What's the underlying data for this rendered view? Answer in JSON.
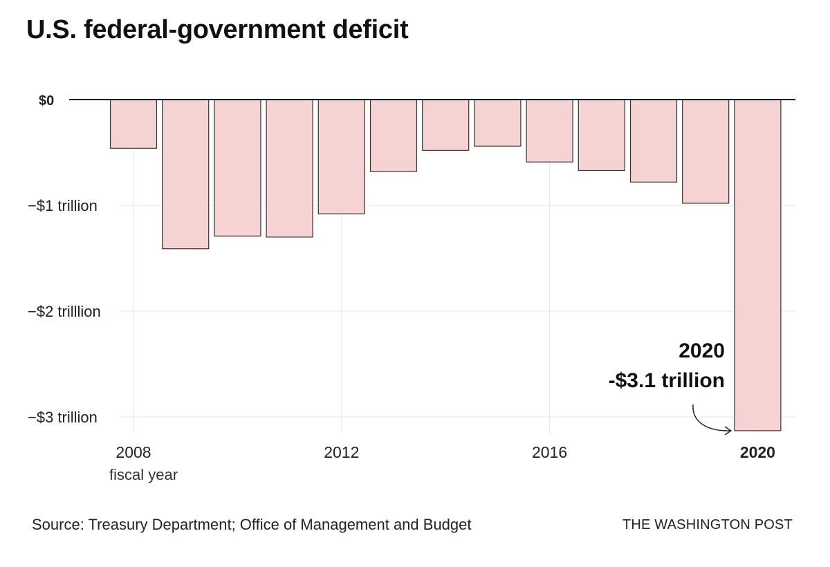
{
  "title": "U.S. federal-government deficit",
  "chart_data": {
    "type": "bar",
    "title": "U.S. federal-government deficit",
    "xlabel": "fiscal year",
    "ylabel": "",
    "categories": [
      "2008",
      "2009",
      "2010",
      "2011",
      "2012",
      "2013",
      "2014",
      "2015",
      "2016",
      "2017",
      "2018",
      "2019",
      "2020"
    ],
    "values": [
      -0.46,
      -1.41,
      -1.29,
      -1.3,
      -1.08,
      -0.68,
      -0.48,
      -0.44,
      -0.59,
      -0.67,
      -0.78,
      -0.98,
      -3.13
    ],
    "ylim": [
      -3.13,
      0
    ],
    "y_ticks": [
      {
        "value": 0,
        "label": "$0"
      },
      {
        "value": -1,
        "label": "−$1 trillion"
      },
      {
        "value": -2,
        "label": "−$2 trilllion"
      },
      {
        "value": -3,
        "label": "−$3 trillion"
      }
    ],
    "x_ticks": [
      {
        "category": "2008",
        "label": "2008"
      },
      {
        "category": "2012",
        "label": "2012"
      },
      {
        "category": "2016",
        "label": "2016"
      },
      {
        "category": "2020",
        "label": "2020"
      }
    ],
    "annotation": {
      "category": "2020",
      "line1": "2020",
      "line2": "-$3.1 trillion"
    },
    "colors": {
      "bar_fill": "#f6d3d3",
      "bar_stroke": "#333333",
      "grid": "#e6e6e6",
      "zero_line": "#111111"
    }
  },
  "footer": {
    "source": "Source: Treasury Department; Office of Management and Budget",
    "brand": "THE WASHINGTON POST"
  }
}
